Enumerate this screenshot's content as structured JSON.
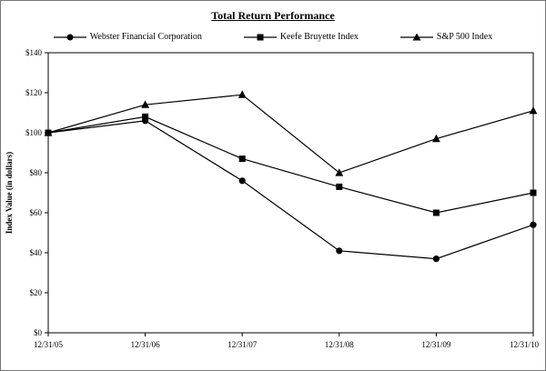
{
  "title": "Total Return Performance",
  "chart_data": {
    "type": "line",
    "title": "Total Return Performance",
    "categories": [
      "12/31/05",
      "12/31/06",
      "12/31/07",
      "12/31/08",
      "12/31/09",
      "12/31/10"
    ],
    "series": [
      {
        "name": "Webster Financial Corporation",
        "marker": "circle",
        "values": [
          100,
          106,
          76,
          41,
          37,
          54
        ]
      },
      {
        "name": "Keefe Bruyette Index",
        "marker": "square",
        "values": [
          100,
          108,
          87,
          73,
          60,
          70
        ]
      },
      {
        "name": "S&P 500 Index",
        "marker": "triangle",
        "values": [
          100,
          114,
          119,
          80,
          97,
          111
        ]
      }
    ],
    "xlabel": "",
    "ylabel": "Index Value (in dollars)",
    "ylim": [
      0,
      140
    ],
    "ytick_step": 20,
    "yticks_labels": [
      "$0",
      "$20",
      "$40",
      "$60",
      "$80",
      "$100",
      "$120",
      "$140"
    ],
    "grid": false,
    "legend_position": "top",
    "line_color": "#000000",
    "marker_color": "#000000"
  }
}
